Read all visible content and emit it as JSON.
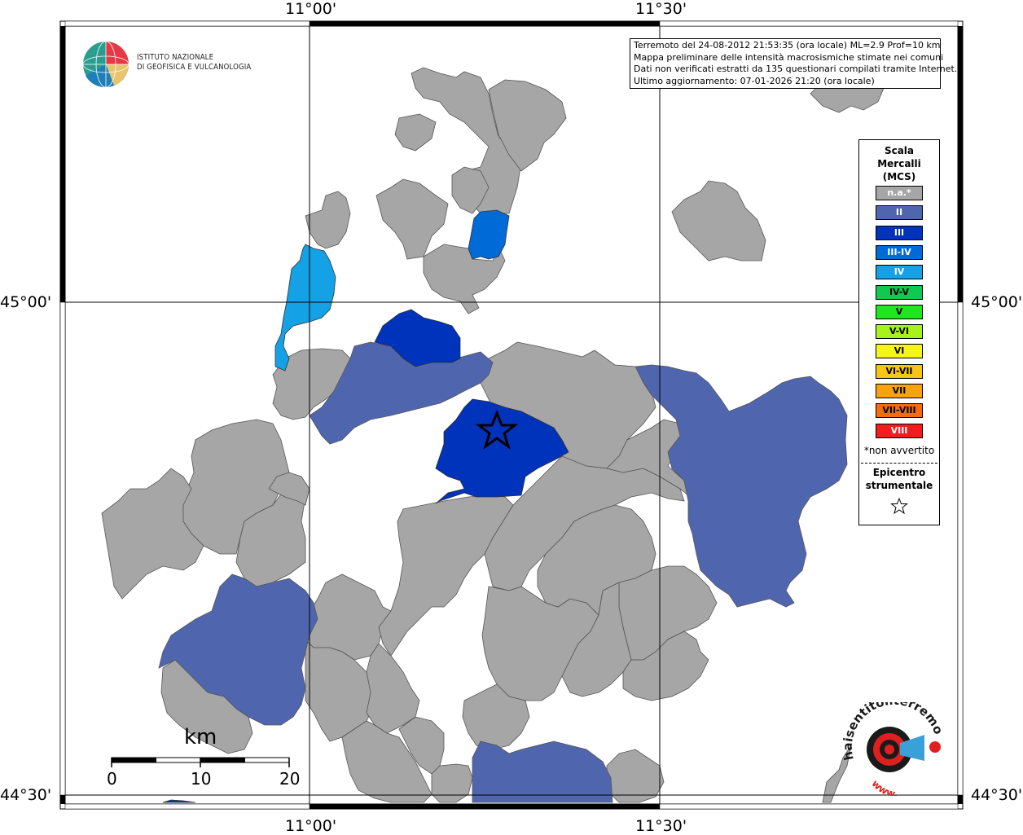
{
  "info": {
    "lines": [
      "Terremoto del 24-08-2012 21:53:35 (ora locale) ML=2.9 Prof=10 km",
      "Mappa preliminare delle intensità macrosismiche stimate nei comuni",
      "Dati non verificati estratti da 135 questionari compilati tramite Internet.",
      "Ultimo aggiornamento: 07-01-2026 21:20 (ora locale)"
    ]
  },
  "institute": {
    "line1": "ISTITUTO NAZIONALE",
    "line2": "DI GEOFISICA E VULCANOLOGIA"
  },
  "axes": {
    "lon_labels": [
      "11°00'",
      "11°30'"
    ],
    "lat_labels": [
      "45°00'",
      "44°30'"
    ]
  },
  "legend": {
    "title_lines": [
      "Scala",
      "Mercalli",
      "(MCS)"
    ],
    "items": [
      {
        "label": "n.a.*",
        "color": "#a6a6a6",
        "text_color": "#ffffff"
      },
      {
        "label": "II",
        "color": "#4f66ae",
        "text_color": "#ffffff"
      },
      {
        "label": "III",
        "color": "#0033bb",
        "text_color": "#ffffff"
      },
      {
        "label": "III-IV",
        "color": "#006ad6",
        "text_color": "#ffffff"
      },
      {
        "label": "IV",
        "color": "#14a1e6",
        "text_color": "#ffffff"
      },
      {
        "label": "IV-V",
        "color": "#11c850",
        "text_color": "#000000"
      },
      {
        "label": "V",
        "color": "#1fe61f",
        "text_color": "#000000"
      },
      {
        "label": "V-VI",
        "color": "#a6f21a",
        "text_color": "#000000"
      },
      {
        "label": "VI",
        "color": "#f5f51a",
        "text_color": "#000000"
      },
      {
        "label": "VI-VII",
        "color": "#f6c515",
        "text_color": "#000000"
      },
      {
        "label": "VII",
        "color": "#f7a30d",
        "text_color": "#000000"
      },
      {
        "label": "VII-VIII",
        "color": "#f66a10",
        "text_color": "#000000"
      },
      {
        "label": "VIII",
        "color": "#f21c1c",
        "text_color": "#ffffff"
      }
    ],
    "note": "*non avvertito",
    "epicenter_lines": [
      "Epicentro",
      "strumentale"
    ]
  },
  "scale_bar": {
    "unit": "km",
    "ticks": [
      "0",
      "10",
      "20"
    ]
  },
  "hsit": {
    "text": "haisentitoilterremoto.it",
    "www": "www."
  },
  "colors": {
    "grey": "#a6a6a6",
    "ii": "#4f66ae",
    "iii": "#0033bb",
    "iii_iv": "#006ad6",
    "iv": "#14a1e6",
    "border": "#555555"
  }
}
